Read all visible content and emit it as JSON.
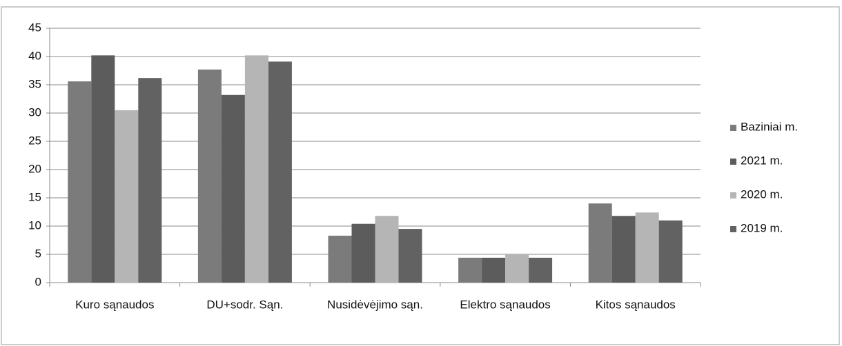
{
  "chart_data": {
    "type": "bar",
    "categories": [
      "Kuro sąnaudos",
      "DU+sodr. Sąn.",
      "Nusidėvėjimo sąn.",
      "Elektro sąnaudos",
      "Kitos sąnaudos"
    ],
    "series": [
      {
        "name": "Baziniai m.",
        "color": "#7b7b7b",
        "values": [
          35.6,
          37.7,
          8.3,
          4.4,
          14.0
        ]
      },
      {
        "name": "2021 m.",
        "color": "#5c5c5c",
        "values": [
          40.2,
          33.2,
          10.4,
          4.4,
          11.8
        ]
      },
      {
        "name": "2020 m.",
        "color": "#b5b5b5",
        "values": [
          30.5,
          40.2,
          11.8,
          5.1,
          12.4
        ]
      },
      {
        "name": "2019 m.",
        "color": "#626262",
        "values": [
          36.2,
          39.1,
          9.5,
          4.4,
          11.0
        ]
      }
    ],
    "ylim": [
      0,
      45
    ],
    "yticks": [
      0,
      5,
      10,
      15,
      20,
      25,
      30,
      35,
      40,
      45
    ],
    "grid": true,
    "legend": "right"
  }
}
